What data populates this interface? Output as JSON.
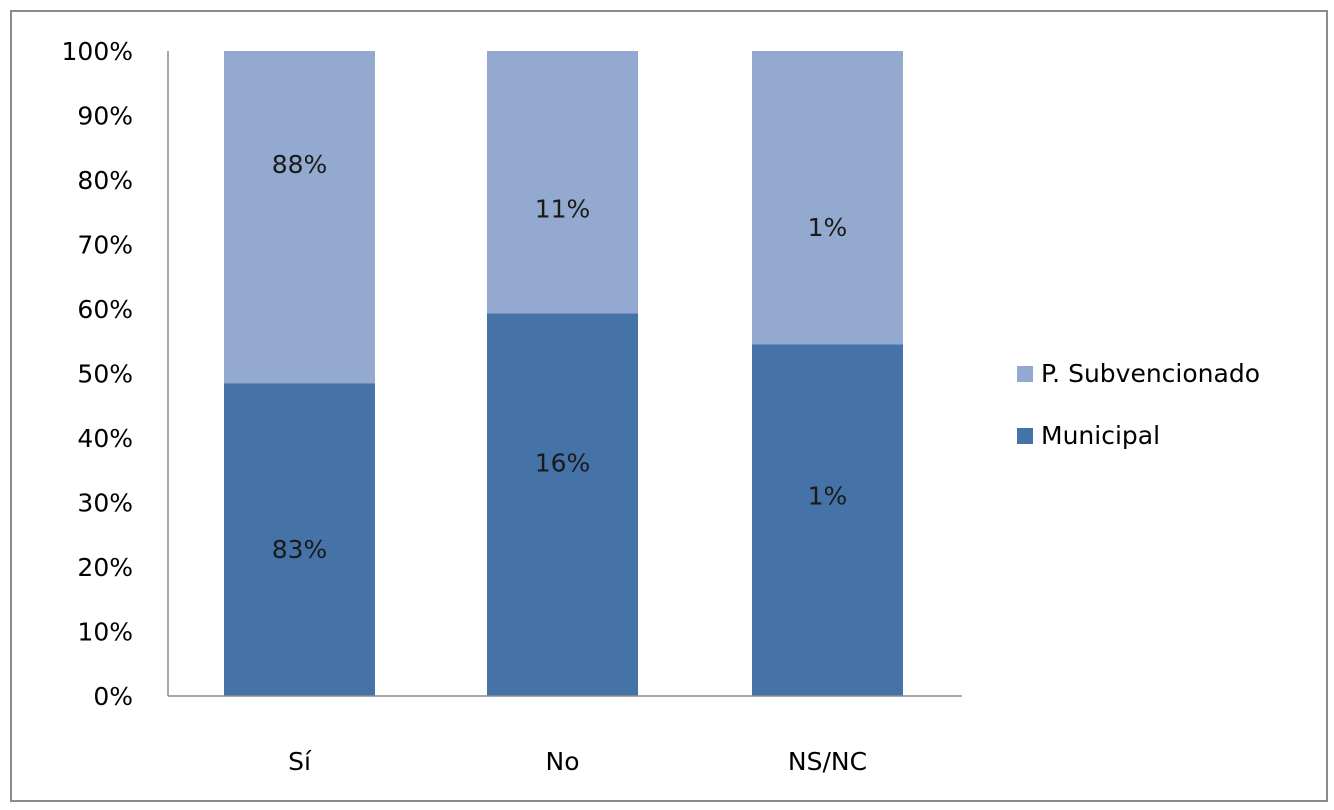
{
  "chart_data": {
    "type": "bar",
    "stacked": true,
    "percent_stacked": true,
    "categories": [
      "Sí",
      "No",
      "NS/NC"
    ],
    "series": [
      {
        "name": "Municipal",
        "color": "#4573a7",
        "share": [
          48.5,
          59.3,
          54.5
        ],
        "labels": [
          "83%",
          "16%",
          "1%"
        ]
      },
      {
        "name": "P. Subvencionado",
        "color": "#93a9cf",
        "share": [
          51.5,
          40.7,
          45.5
        ],
        "labels": [
          "88%",
          "11%",
          "1%"
        ]
      }
    ],
    "yticks": [
      "0%",
      "10%",
      "20%",
      "30%",
      "40%",
      "50%",
      "60%",
      "70%",
      "80%",
      "90%",
      "100%"
    ],
    "ylim": [
      0,
      100
    ],
    "grid": false,
    "legend": {
      "position": "right",
      "items": [
        "P. Subvencionado",
        "Municipal"
      ]
    }
  }
}
